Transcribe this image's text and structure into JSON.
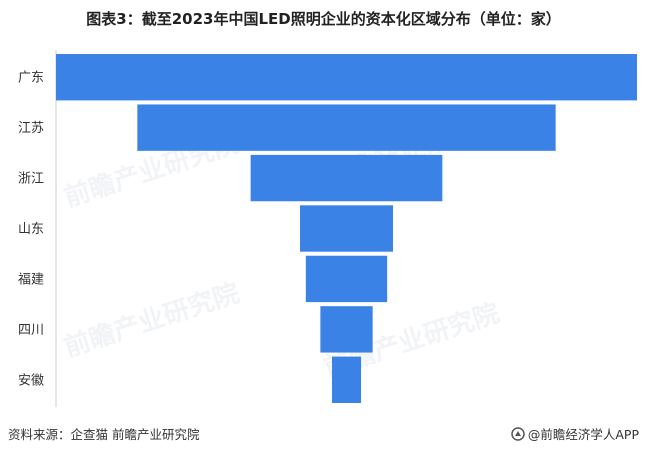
{
  "title": "图表3：截至2023年中国LED照明企业的资本化区域分布（单位：家）",
  "footer": {
    "source": "资料来源：企查猫 前瞻产业研究院",
    "brand": "@前瞻经济学人APP"
  },
  "watermark": "前瞻产业研究院",
  "colors": {
    "bar": "#3b82e6",
    "text": "#333333"
  },
  "chart_data": {
    "type": "bar",
    "orientation": "horizontal-centered-funnel",
    "categories": [
      "广东",
      "江苏",
      "浙江",
      "山东",
      "福建",
      "四川",
      "安徽"
    ],
    "values": [
      100,
      72,
      33,
      16,
      14,
      9,
      5
    ],
    "grid": false,
    "legend": "none",
    "data_labels": false
  }
}
